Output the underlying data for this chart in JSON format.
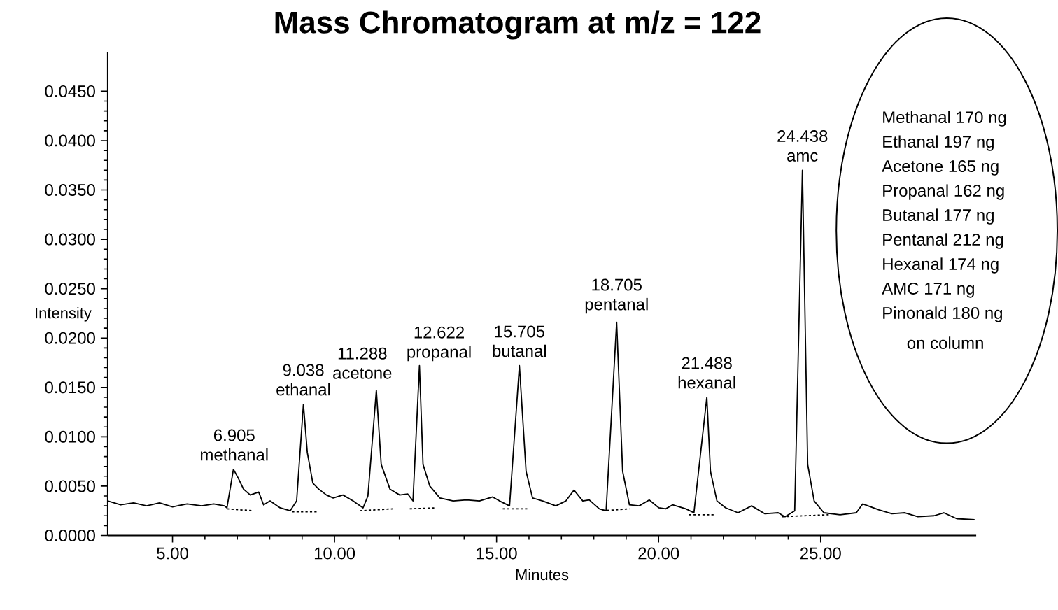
{
  "chart_data": {
    "type": "line",
    "title": "Mass Chromatogram at m/z = 122",
    "xlabel": "Minutes",
    "ylabel": "Intensity",
    "xlim": [
      3,
      29.8
    ],
    "ylim": [
      0,
      0.049
    ],
    "xticks": [
      {
        "value": 5,
        "label": "5.00"
      },
      {
        "value": 10,
        "label": "10.00"
      },
      {
        "value": 15,
        "label": "15.00"
      },
      {
        "value": 20,
        "label": "20.00"
      },
      {
        "value": 25,
        "label": "25.00"
      }
    ],
    "yticks": [
      {
        "value": 0,
        "label": "0.0000"
      },
      {
        "value": 0.005,
        "label": "0.0050"
      },
      {
        "value": 0.01,
        "label": "0.0100"
      },
      {
        "value": 0.015,
        "label": "0.0150"
      },
      {
        "value": 0.02,
        "label": "0.0200"
      },
      {
        "value": 0.025,
        "label": "0.0250"
      },
      {
        "value": 0.03,
        "label": "0.0300"
      },
      {
        "value": 0.035,
        "label": "0.0350"
      },
      {
        "value": 0.04,
        "label": "0.0400"
      },
      {
        "value": 0.045,
        "label": "0.0450"
      }
    ],
    "marker": "none",
    "line_style": "solid",
    "series": [
      {
        "color": "#000000",
        "x": [
          3.0,
          3.4,
          3.8,
          4.2,
          4.6,
          5.0,
          5.45,
          5.9,
          6.27,
          6.6,
          6.68,
          6.88,
          7.03,
          7.19,
          7.4,
          7.66,
          7.81,
          8.01,
          8.32,
          8.63,
          8.83,
          9.04,
          9.16,
          9.33,
          9.51,
          9.75,
          9.96,
          10.26,
          10.57,
          10.88,
          11.03,
          11.29,
          11.44,
          11.71,
          12.01,
          12.26,
          12.42,
          12.62,
          12.73,
          12.94,
          13.25,
          13.66,
          14.07,
          14.47,
          14.88,
          15.09,
          15.4,
          15.705,
          15.91,
          16.11,
          16.42,
          16.83,
          17.14,
          17.39,
          17.66,
          17.86,
          18.17,
          18.38,
          18.705,
          18.89,
          19.1,
          19.4,
          19.71,
          20.01,
          20.22,
          20.43,
          20.84,
          21.09,
          21.488,
          21.6,
          21.8,
          22.07,
          22.45,
          22.87,
          23.28,
          23.69,
          23.9,
          24.2,
          24.438,
          24.6,
          24.8,
          25.1,
          25.6,
          26.1,
          26.3,
          26.8,
          27.2,
          27.6,
          28.0,
          28.5,
          28.8,
          29.2,
          29.75
        ],
        "values": [
          0.0035,
          0.0031,
          0.0033,
          0.003,
          0.0033,
          0.0029,
          0.0032,
          0.003,
          0.0032,
          0.003,
          0.0028,
          0.0067,
          0.0058,
          0.0047,
          0.0041,
          0.0044,
          0.0031,
          0.0035,
          0.0028,
          0.0025,
          0.0035,
          0.0133,
          0.0084,
          0.0053,
          0.0047,
          0.0041,
          0.0038,
          0.0041,
          0.0035,
          0.0028,
          0.004,
          0.0147,
          0.0072,
          0.0047,
          0.0041,
          0.0042,
          0.0035,
          0.0172,
          0.0072,
          0.005,
          0.0038,
          0.0035,
          0.0036,
          0.0035,
          0.0039,
          0.0035,
          0.003,
          0.0172,
          0.0065,
          0.0038,
          0.0035,
          0.003,
          0.0035,
          0.0046,
          0.0035,
          0.0036,
          0.0027,
          0.0025,
          0.0216,
          0.0065,
          0.0031,
          0.003,
          0.0036,
          0.0028,
          0.0027,
          0.0031,
          0.0027,
          0.0023,
          0.014,
          0.0065,
          0.0035,
          0.0028,
          0.0023,
          0.003,
          0.0022,
          0.0023,
          0.0019,
          0.0025,
          0.037,
          0.0072,
          0.0035,
          0.0023,
          0.0021,
          0.0023,
          0.0032,
          0.0026,
          0.0022,
          0.0023,
          0.0019,
          0.002,
          0.0023,
          0.0017,
          0.0016
        ]
      },
      {
        "color": "#000000",
        "line_style": "dotted",
        "x": [
          6.68,
          7.5,
          8.0,
          8.69,
          9.45,
          10.0,
          10.78,
          11.8,
          12.0,
          12.32,
          13.14,
          14.0,
          15.19,
          16.0,
          17.0,
          18.27,
          19.1,
          20.0,
          20.94,
          21.76,
          23.0,
          23.81,
          25.25
        ],
        "values": [
          0.0027,
          0.0025,
          null,
          0.0024,
          0.0024,
          null,
          0.0025,
          0.0027,
          null,
          0.0027,
          0.0028,
          null,
          0.0027,
          0.0027,
          null,
          0.0025,
          0.0027,
          null,
          0.0021,
          0.0021,
          null,
          0.0019,
          0.0021
        ]
      }
    ],
    "annotations": [
      {
        "text": "6.905 methanal",
        "x": 6.905,
        "y": 0.0067
      },
      {
        "text": "9.038 ethanal",
        "x": 9.038,
        "y": 0.0133
      },
      {
        "text": "11.288 acetone",
        "x": 11.288,
        "y": 0.0147
      },
      {
        "text": "12.622 propanal",
        "x": 12.622,
        "y": 0.0172
      },
      {
        "text": "15.705 butanal",
        "x": 15.705,
        "y": 0.0172
      },
      {
        "text": "18.705 pentanal",
        "x": 18.705,
        "y": 0.0216
      },
      {
        "text": "21.488 hexanal",
        "x": 21.488,
        "y": 0.014
      },
      {
        "text": "24.438 amc",
        "x": 24.438,
        "y": 0.037
      },
      "Methanal 170 ng",
      "Ethanal 197 ng",
      "Acetone 165 ng",
      "Propanal 162 ng",
      "Butanal 177 ng",
      "Pentanal 212 ng",
      "Hexanal 174 ng",
      "AMC 171 ng",
      "Pinonald 180 ng",
      "on column"
    ]
  }
}
